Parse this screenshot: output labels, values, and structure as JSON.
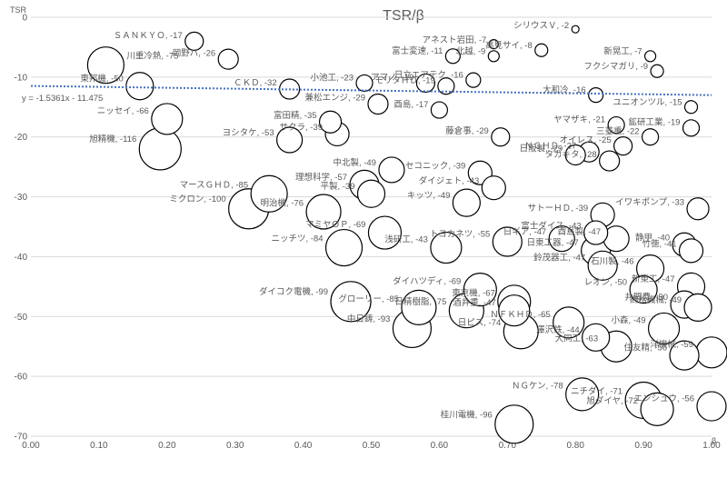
{
  "chart_data": {
    "type": "scatter",
    "title": "TSR/β",
    "xlabel": "β",
    "ylabel": "TSR",
    "xlim": [
      0.0,
      1.0
    ],
    "ylim": [
      -70,
      0
    ],
    "x_ticks": [
      "0.00",
      "0.10",
      "0.20",
      "0.30",
      "0.40",
      "0.50",
      "0.60",
      "0.70",
      "0.80",
      "0.90",
      "1.00"
    ],
    "y_ticks": [
      "0",
      "-10",
      "-20",
      "-30",
      "-40",
      "-50",
      "-60",
      "-70"
    ],
    "grid": "horizontal",
    "trendline": {
      "equation": "y = -1.5361x - 11.475",
      "slope": -1.5361,
      "intercept": -11.475
    },
    "points": [
      {
        "label": "シリウスＶ, -2",
        "x": 0.8,
        "y": -2,
        "r": 4
      },
      {
        "label": "ＳＡＮＫＹＯ, -17",
        "x": 0.24,
        "y": -4,
        "r": 10
      },
      {
        "label": "岡野バ, -26",
        "x": 0.29,
        "y": -7,
        "r": 11
      },
      {
        "label": "川重冷熱, -75",
        "x": 0.11,
        "y": -8,
        "r": 20
      },
      {
        "label": "アマノ, -19",
        "x": 0.58,
        "y": -11,
        "r": 10
      },
      {
        "label": "アネスト岩田, -7",
        "x": 0.68,
        "y": -4.5,
        "r": 5
      },
      {
        "label": "高見サイ, -8",
        "x": 0.75,
        "y": -5.5,
        "r": 7
      },
      {
        "label": "富士変速, -11",
        "x": 0.62,
        "y": -6.5,
        "r": 8
      },
      {
        "label": "北越, -9",
        "x": 0.68,
        "y": -6.5,
        "r": 6
      },
      {
        "label": "新晃工, -7",
        "x": 0.91,
        "y": -6.5,
        "r": 6
      },
      {
        "label": "フクシマガリ, -9",
        "x": 0.92,
        "y": -9,
        "r": 7
      },
      {
        "label": "東邦機, -50",
        "x": 0.16,
        "y": -11.5,
        "r": 15
      },
      {
        "label": "ＣＫＤ, -32",
        "x": 0.38,
        "y": -12,
        "r": 11
      },
      {
        "label": "小池工, -23",
        "x": 0.49,
        "y": -11,
        "r": 9
      },
      {
        "label": "日立エアテク, -16",
        "x": 0.65,
        "y": -10.5,
        "r": 8
      },
      {
        "label": "大和冷, -16",
        "x": 0.83,
        "y": -13,
        "r": 8
      },
      {
        "label": "モリタＨＤ, -19",
        "x": 0.61,
        "y": -11.5,
        "r": 9
      },
      {
        "label": "兼松エンジ, -29",
        "x": 0.51,
        "y": -14.5,
        "r": 11
      },
      {
        "label": "酉島, -17",
        "x": 0.6,
        "y": -15.5,
        "r": 9
      },
      {
        "label": "ユニオンツル, -15",
        "x": 0.97,
        "y": -15,
        "r": 7
      },
      {
        "label": "ヤマザキ, -21",
        "x": 0.86,
        "y": -18,
        "r": 9
      },
      {
        "label": "鉱研工業, -19",
        "x": 0.97,
        "y": -18.5,
        "r": 9
      },
      {
        "label": "ニッセイ, -66",
        "x": 0.2,
        "y": -17,
        "r": 17
      },
      {
        "label": "富田精, -35",
        "x": 0.44,
        "y": -17.5,
        "r": 12
      },
      {
        "label": "サクラ, -39",
        "x": 0.45,
        "y": -19.5,
        "r": 13
      },
      {
        "label": "ＮＣＨＤ, -27",
        "x": 0.82,
        "y": -22.5,
        "r": 11
      },
      {
        "label": "三菱重, -22",
        "x": 0.91,
        "y": -20,
        "r": 9
      },
      {
        "label": "藤倉事, -29",
        "x": 0.69,
        "y": -20,
        "r": 10
      },
      {
        "label": "ヨシタケ, -53",
        "x": 0.38,
        "y": -20.5,
        "r": 14
      },
      {
        "label": "オイレス, -25",
        "x": 0.87,
        "y": -21.5,
        "r": 10
      },
      {
        "label": "旭精機, -116",
        "x": 0.19,
        "y": -22,
        "r": 23
      },
      {
        "label": "日阪製, -29",
        "x": 0.8,
        "y": -23,
        "r": 11
      },
      {
        "label": "タカキタ, -28",
        "x": 0.85,
        "y": -24,
        "r": 11
      },
      {
        "label": "中北製, -49",
        "x": 0.53,
        "y": -25.5,
        "r": 14
      },
      {
        "label": "セコニック, -39",
        "x": 0.66,
        "y": -26,
        "r": 13
      },
      {
        "label": "理想科学, -57",
        "x": 0.49,
        "y": -28,
        "r": 16
      },
      {
        "label": "ダイジェト, -43",
        "x": 0.68,
        "y": -28.5,
        "r": 13
      },
      {
        "label": "平製, -39",
        "x": 0.5,
        "y": -29.5,
        "r": 15
      },
      {
        "label": "キッツ, -49",
        "x": 0.64,
        "y": -31,
        "r": 15
      },
      {
        "label": "マースＧＨＤ, -85",
        "x": 0.35,
        "y": -29.5,
        "r": 20
      },
      {
        "label": "ミクロン, -100",
        "x": 0.32,
        "y": -32,
        "r": 22
      },
      {
        "label": "明治機, -76",
        "x": 0.43,
        "y": -32.5,
        "r": 19
      },
      {
        "label": "サトーＨＤ, -39",
        "x": 0.84,
        "y": -33,
        "r": 13
      },
      {
        "label": "イワキポンプ, -33",
        "x": 0.98,
        "y": -32,
        "r": 12
      },
      {
        "label": "富士ダイス, -43",
        "x": 0.83,
        "y": -36,
        "r": 13
      },
      {
        "label": "マミヤＯＰ, -69",
        "x": 0.52,
        "y": -36,
        "r": 18
      },
      {
        "label": "静甲, -40",
        "x": 0.96,
        "y": -38,
        "r": 13
      },
      {
        "label": "ニッチツ, -84",
        "x": 0.46,
        "y": -38.5,
        "r": 20
      },
      {
        "label": "浅研工, -43",
        "x": 0.61,
        "y": -38.5,
        "r": 17
      },
      {
        "label": "トヨカネツ, -55",
        "x": 0.7,
        "y": -37.5,
        "r": 16
      },
      {
        "label": "日ギア, -47",
        "x": 0.78,
        "y": -37,
        "r": 14
      },
      {
        "label": "酉島製, -47",
        "x": 0.86,
        "y": -37,
        "r": 14
      },
      {
        "label": "竹徳, -41",
        "x": 0.97,
        "y": -39,
        "r": 13
      },
      {
        "label": "日東工器, -47",
        "x": 0.83,
        "y": -39,
        "r": 16
      },
      {
        "label": "鈴茂器工, -47",
        "x": 0.84,
        "y": -41.5,
        "r": 16
      },
      {
        "label": "石川製, -46",
        "x": 0.91,
        "y": -42,
        "r": 15
      },
      {
        "label": "東京機, -67",
        "x": 0.71,
        "y": -47.5,
        "r": 18
      },
      {
        "label": "ダイハツディ, -69",
        "x": 0.66,
        "y": -45.5,
        "r": 18
      },
      {
        "label": "グローリー, -85",
        "x": 0.57,
        "y": -48.5,
        "r": 19
      },
      {
        "label": "ダイコク電機, -99",
        "x": 0.47,
        "y": -47.5,
        "r": 22
      },
      {
        "label": "レオン, -50",
        "x": 0.9,
        "y": -45.5,
        "r": 15
      },
      {
        "label": "新東工, -47",
        "x": 0.97,
        "y": -45,
        "r": 15
      },
      {
        "label": "井関農, -50",
        "x": 0.96,
        "y": -48,
        "r": 15
      },
      {
        "label": "高松機械, -49",
        "x": 0.98,
        "y": -48.5,
        "r": 15
      },
      {
        "label": "酒井重, -47",
        "x": 0.71,
        "y": -49,
        "r": 17
      },
      {
        "label": "日精樹脂, -75",
        "x": 0.64,
        "y": -49,
        "r": 19
      },
      {
        "label": "ＮＦＫＨＤ, -65",
        "x": 0.79,
        "y": -51,
        "r": 17
      },
      {
        "label": "小森, -49",
        "x": 0.93,
        "y": -52,
        "r": 17
      },
      {
        "label": "中日鋳, -93",
        "x": 0.56,
        "y": -52,
        "r": 21
      },
      {
        "label": "日ピス, -74",
        "x": 0.72,
        "y": -52.5,
        "r": 19
      },
      {
        "label": "澤沢鉄, -44",
        "x": 0.83,
        "y": -53.5,
        "r": 15
      },
      {
        "label": "大同工, -63",
        "x": 0.86,
        "y": -55,
        "r": 17
      },
      {
        "label": "住友精, -56",
        "x": 0.96,
        "y": -56.5,
        "r": 16
      },
      {
        "label": "洋機械, -59",
        "x": 1.0,
        "y": -56,
        "r": 17
      },
      {
        "label": "ニチダイ, -71",
        "x": 0.9,
        "y": -64,
        "r": 20
      },
      {
        "label": "ＮＧケン, -78",
        "x": 0.81,
        "y": -63,
        "r": 18
      },
      {
        "label": "旭ダイヤ, -72",
        "x": 0.92,
        "y": -65.5,
        "r": 18
      },
      {
        "label": "エンシュウ, -56",
        "x": 1.0,
        "y": -65,
        "r": 16
      },
      {
        "label": "桂川電機, -96",
        "x": 0.71,
        "y": -68,
        "r": 21
      }
    ]
  }
}
